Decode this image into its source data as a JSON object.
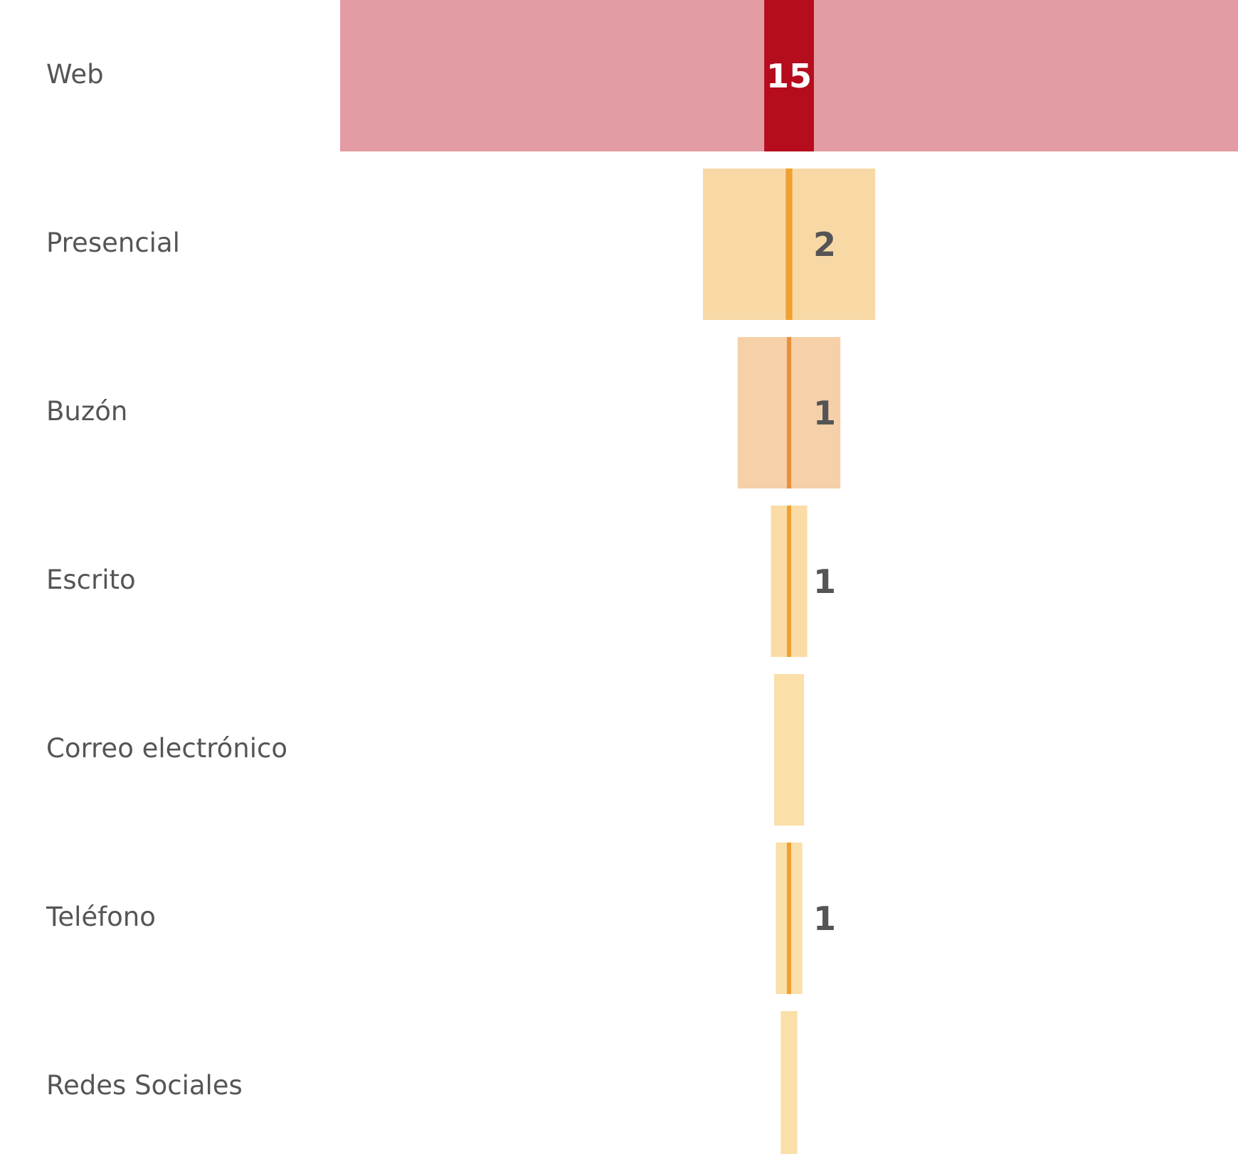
{
  "chart_data": {
    "type": "funnel",
    "categories": [
      "Web",
      "Presencial",
      "Buzón",
      "Escrito",
      "Correo electrónico",
      "Teléfono",
      "Redes Sociales"
    ],
    "series": [
      {
        "colors": [
          "#e39ca3",
          "#f8d9a6",
          "#f5d0a8",
          "#fbdca7",
          "#fbdfa8",
          "#fbdfa8",
          "#fbdfa8"
        ],
        "values": [
          271,
          52,
          31,
          11,
          9,
          8,
          5
        ]
      },
      {
        "colors": [
          "#b50c1e",
          "#f0a030",
          "#e8903a",
          "#f0a030",
          "#f0a030",
          "#f0a030",
          "#f0a030"
        ],
        "values": [
          15,
          2,
          1,
          1,
          0,
          1,
          0
        ]
      }
    ]
  }
}
